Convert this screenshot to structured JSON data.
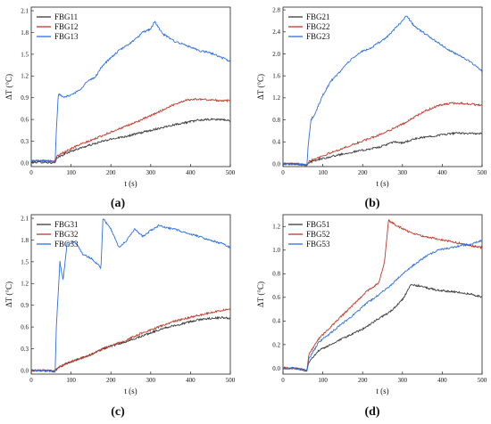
{
  "chart_data": [
    {
      "type": "line",
      "panel_label": "(a)",
      "xlabel": "t (s)",
      "ylabel": "ΔT (°C)",
      "xlim": [
        0,
        500
      ],
      "ylim": [
        -0.05,
        2.15
      ],
      "xticks": [
        0,
        100,
        200,
        300,
        400,
        500
      ],
      "yticks": [
        0.0,
        0.3,
        0.6,
        0.9,
        1.2,
        1.5,
        1.8,
        2.1
      ],
      "ytick_decimals": 1,
      "legend": "top-left",
      "series": [
        {
          "name": "FBG11",
          "color": "#3a3a3a",
          "x": [
            0,
            30,
            60,
            65,
            90,
            120,
            150,
            180,
            210,
            240,
            270,
            300,
            330,
            360,
            390,
            420,
            450,
            480,
            500
          ],
          "y": [
            0.01,
            0.01,
            0.0,
            0.07,
            0.14,
            0.2,
            0.25,
            0.3,
            0.34,
            0.37,
            0.41,
            0.45,
            0.49,
            0.53,
            0.56,
            0.59,
            0.6,
            0.6,
            0.58
          ]
        },
        {
          "name": "FBG12",
          "color": "#c0392b",
          "x": [
            0,
            30,
            60,
            65,
            90,
            120,
            150,
            180,
            210,
            240,
            270,
            300,
            330,
            360,
            390,
            420,
            450,
            480,
            500
          ],
          "y": [
            0.03,
            0.03,
            0.02,
            0.1,
            0.17,
            0.25,
            0.31,
            0.38,
            0.45,
            0.51,
            0.58,
            0.65,
            0.73,
            0.81,
            0.87,
            0.88,
            0.87,
            0.86,
            0.86
          ]
        },
        {
          "name": "FBG13",
          "color": "#2e6fe0",
          "x": [
            0,
            30,
            60,
            63,
            68,
            80,
            100,
            120,
            140,
            160,
            180,
            200,
            220,
            240,
            260,
            280,
            300,
            310,
            330,
            360,
            390,
            420,
            450,
            480,
            500
          ],
          "y": [
            0.03,
            0.03,
            0.02,
            0.45,
            0.96,
            0.9,
            0.94,
            1.0,
            1.12,
            1.18,
            1.35,
            1.45,
            1.55,
            1.62,
            1.7,
            1.8,
            1.85,
            1.95,
            1.78,
            1.68,
            1.62,
            1.55,
            1.52,
            1.45,
            1.4
          ]
        }
      ]
    },
    {
      "type": "line",
      "panel_label": "(b)",
      "xlabel": "t (s)",
      "ylabel": "ΔT (°C)",
      "xlim": [
        0,
        500
      ],
      "ylim": [
        -0.05,
        2.85
      ],
      "xticks": [
        0,
        100,
        200,
        300,
        400,
        500
      ],
      "yticks": [
        0.0,
        0.4,
        0.8,
        1.2,
        1.6,
        2.0,
        2.4,
        2.8
      ],
      "ytick_decimals": 1,
      "legend": "top-left",
      "series": [
        {
          "name": "FBG21",
          "color": "#3a3a3a",
          "x": [
            0,
            30,
            60,
            65,
            90,
            120,
            150,
            180,
            210,
            240,
            260,
            280,
            300,
            330,
            360,
            390,
            420,
            450,
            480,
            500
          ],
          "y": [
            0.0,
            0.0,
            -0.02,
            0.02,
            0.08,
            0.13,
            0.18,
            0.22,
            0.26,
            0.3,
            0.35,
            0.4,
            0.38,
            0.45,
            0.49,
            0.52,
            0.55,
            0.56,
            0.55,
            0.55
          ]
        },
        {
          "name": "FBG22",
          "color": "#c0392b",
          "x": [
            0,
            30,
            60,
            65,
            90,
            120,
            150,
            180,
            210,
            240,
            270,
            300,
            330,
            360,
            390,
            420,
            450,
            480,
            500
          ],
          "y": [
            0.0,
            0.0,
            -0.02,
            0.05,
            0.12,
            0.2,
            0.28,
            0.36,
            0.44,
            0.52,
            0.62,
            0.72,
            0.85,
            0.97,
            1.06,
            1.1,
            1.1,
            1.08,
            1.06
          ]
        },
        {
          "name": "FBG23",
          "color": "#2e6fe0",
          "x": [
            0,
            30,
            60,
            63,
            70,
            80,
            100,
            120,
            140,
            160,
            180,
            200,
            220,
            240,
            260,
            280,
            300,
            310,
            330,
            360,
            390,
            420,
            450,
            480,
            500
          ],
          "y": [
            0.0,
            0.0,
            -0.02,
            0.3,
            0.8,
            0.9,
            1.25,
            1.5,
            1.65,
            1.82,
            1.95,
            2.05,
            2.1,
            2.2,
            2.3,
            2.45,
            2.6,
            2.7,
            2.5,
            2.35,
            2.2,
            2.05,
            1.95,
            1.8,
            1.68
          ]
        }
      ]
    },
    {
      "type": "line",
      "panel_label": "(c)",
      "xlabel": "t (s)",
      "ylabel": "ΔT (°C)",
      "xlim": [
        0,
        500
      ],
      "ylim": [
        -0.05,
        2.15
      ],
      "xticks": [
        0,
        100,
        200,
        300,
        400,
        500
      ],
      "yticks": [
        0.0,
        0.3,
        0.6,
        0.9,
        1.2,
        1.5,
        1.8,
        2.1
      ],
      "ytick_decimals": 1,
      "legend": "top-left",
      "series": [
        {
          "name": "FBG31",
          "color": "#3a3a3a",
          "x": [
            0,
            30,
            60,
            65,
            90,
            120,
            150,
            180,
            210,
            240,
            270,
            300,
            330,
            360,
            390,
            420,
            450,
            480,
            500
          ],
          "y": [
            0.0,
            0.0,
            -0.01,
            0.03,
            0.1,
            0.16,
            0.22,
            0.3,
            0.35,
            0.4,
            0.46,
            0.52,
            0.58,
            0.62,
            0.66,
            0.7,
            0.72,
            0.73,
            0.72
          ]
        },
        {
          "name": "FBG32",
          "color": "#c0392b",
          "x": [
            0,
            30,
            60,
            65,
            90,
            120,
            150,
            180,
            210,
            240,
            270,
            300,
            330,
            360,
            390,
            420,
            450,
            480,
            500
          ],
          "y": [
            0.0,
            0.0,
            -0.01,
            0.03,
            0.1,
            0.16,
            0.22,
            0.3,
            0.36,
            0.42,
            0.5,
            0.56,
            0.62,
            0.68,
            0.72,
            0.76,
            0.8,
            0.83,
            0.84
          ]
        },
        {
          "name": "FBG33",
          "color": "#2e6fe0",
          "x": [
            0,
            30,
            60,
            63,
            72,
            80,
            90,
            110,
            130,
            150,
            170,
            175,
            180,
            200,
            220,
            240,
            260,
            280,
            300,
            320,
            340,
            360,
            390,
            420,
            450,
            480,
            500
          ],
          "y": [
            0.0,
            0.0,
            -0.01,
            0.6,
            1.5,
            1.25,
            1.75,
            1.78,
            1.6,
            1.55,
            1.45,
            1.4,
            2.1,
            1.95,
            1.7,
            1.8,
            1.95,
            1.85,
            1.93,
            2.0,
            1.97,
            1.95,
            1.9,
            1.85,
            1.8,
            1.75,
            1.7
          ]
        }
      ]
    },
    {
      "type": "line",
      "panel_label": "(d)",
      "xlabel": "t (s)",
      "ylabel": "ΔT (°C)",
      "xlim": [
        0,
        500
      ],
      "ylim": [
        -0.05,
        1.3
      ],
      "xticks": [
        0,
        100,
        200,
        300,
        400,
        500
      ],
      "yticks": [
        0.0,
        0.2,
        0.4,
        0.6,
        0.8,
        1.0,
        1.2
      ],
      "ytick_decimals": 1,
      "legend": "top-left",
      "series": [
        {
          "name": "FBG51",
          "color": "#3a3a3a",
          "x": [
            0,
            30,
            60,
            65,
            90,
            120,
            150,
            180,
            210,
            240,
            270,
            300,
            320,
            340,
            360,
            390,
            420,
            450,
            480,
            500
          ],
          "y": [
            0.0,
            0.0,
            -0.02,
            0.05,
            0.15,
            0.2,
            0.25,
            0.3,
            0.35,
            0.42,
            0.48,
            0.58,
            0.7,
            0.7,
            0.68,
            0.66,
            0.65,
            0.64,
            0.62,
            0.6
          ]
        },
        {
          "name": "FBG52",
          "color": "#c0392b",
          "x": [
            0,
            30,
            60,
            65,
            90,
            120,
            150,
            180,
            210,
            240,
            255,
            265,
            290,
            320,
            350,
            380,
            410,
            440,
            470,
            500
          ],
          "y": [
            0.0,
            0.0,
            -0.02,
            0.12,
            0.25,
            0.35,
            0.45,
            0.55,
            0.65,
            0.72,
            0.9,
            1.25,
            1.2,
            1.15,
            1.12,
            1.1,
            1.08,
            1.06,
            1.04,
            1.02
          ]
        },
        {
          "name": "FBG53",
          "color": "#2e6fe0",
          "x": [
            0,
            30,
            60,
            65,
            90,
            120,
            150,
            180,
            210,
            240,
            270,
            300,
            330,
            360,
            390,
            420,
            450,
            480,
            500
          ],
          "y": [
            0.0,
            0.0,
            -0.02,
            0.08,
            0.22,
            0.3,
            0.38,
            0.46,
            0.55,
            0.62,
            0.7,
            0.8,
            0.88,
            0.95,
            1.0,
            1.02,
            1.04,
            1.06,
            1.08
          ]
        }
      ]
    }
  ]
}
